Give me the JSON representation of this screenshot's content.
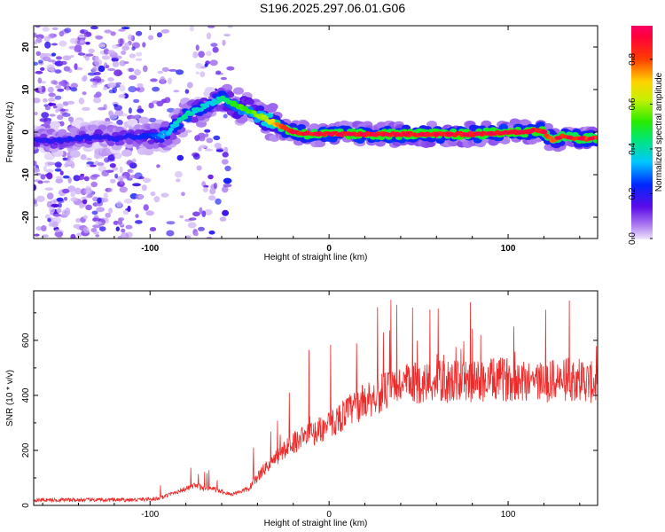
{
  "title": "S196.2025.297.06.01.G06",
  "chart_data": [
    {
      "type": "heatmap",
      "xlabel": "Height of straight line (km)",
      "ylabel": "Frequency (Hz)",
      "xlim": [
        -165,
        150
      ],
      "ylim": [
        -25,
        25
      ],
      "xticks": [
        -100,
        0,
        100
      ],
      "yticks": [
        -20,
        -10,
        0,
        10,
        20
      ],
      "colorbar": {
        "label": "Normalized spectral amplitude",
        "range": [
          0.0,
          0.95
        ],
        "ticks": [
          0.0,
          0.2,
          0.4,
          0.6,
          0.8
        ],
        "tick_labels": [
          "0.0",
          "0.2",
          "0.4",
          "0.6",
          "0.8"
        ]
      },
      "ridge": {
        "name": "Doppler trace",
        "x": [
          -165,
          -150,
          -140,
          -130,
          -120,
          -110,
          -100,
          -95,
          -90,
          -85,
          -80,
          -75,
          -70,
          -65,
          -60,
          -55,
          -50,
          -45,
          -40,
          -35,
          -30,
          -25,
          -20,
          -10,
          0,
          20,
          40,
          60,
          80,
          100,
          110,
          115,
          120,
          125,
          130,
          140,
          150
        ],
        "y": [
          -2,
          -2,
          -1.5,
          -1,
          -1.5,
          -1,
          -1,
          -1,
          0,
          2,
          4,
          5,
          6,
          7,
          8,
          7,
          6,
          5,
          4,
          3,
          2,
          1,
          0,
          -0.5,
          -0.5,
          -0.5,
          -0.5,
          -0.5,
          -0.5,
          0,
          0,
          0.5,
          0,
          -2,
          -1,
          -1.5,
          -1.5
        ],
        "peak_amplitude": [
          0.2,
          0.2,
          0.22,
          0.2,
          0.2,
          0.2,
          0.25,
          0.3,
          0.35,
          0.4,
          0.45,
          0.4,
          0.4,
          0.35,
          0.45,
          0.5,
          0.55,
          0.55,
          0.6,
          0.65,
          0.75,
          0.85,
          0.9,
          0.9,
          0.9,
          0.9,
          0.9,
          0.9,
          0.9,
          0.92,
          0.92,
          0.9,
          0.88,
          0.8,
          0.85,
          0.85,
          0.85
        ]
      },
      "noise_region_x": [
        -165,
        -55
      ]
    },
    {
      "type": "line",
      "xlabel": "Height of straight line (km)",
      "ylabel": "SNR (10 * v/v)",
      "xlim": [
        -165,
        150
      ],
      "ylim": [
        0,
        780
      ],
      "xticks": [
        -100,
        0,
        100
      ],
      "yticks": [
        0,
        200,
        400,
        600
      ],
      "series": [
        {
          "name": "SNR",
          "color": "#ee2b2b",
          "baseline_x": [
            -165,
            -140,
            -110,
            -95,
            -85,
            -75,
            -65,
            -55,
            -45,
            -38,
            -30,
            -20,
            -10,
            0,
            10,
            20,
            30,
            40,
            60,
            80,
            100,
            120,
            140,
            150
          ],
          "baseline_y": [
            20,
            20,
            20,
            25,
            50,
            70,
            60,
            40,
            60,
            120,
            170,
            230,
            260,
            290,
            340,
            380,
            410,
            440,
            450,
            450,
            460,
            450,
            460,
            440
          ],
          "spike_peak": 780
        }
      ]
    }
  ]
}
